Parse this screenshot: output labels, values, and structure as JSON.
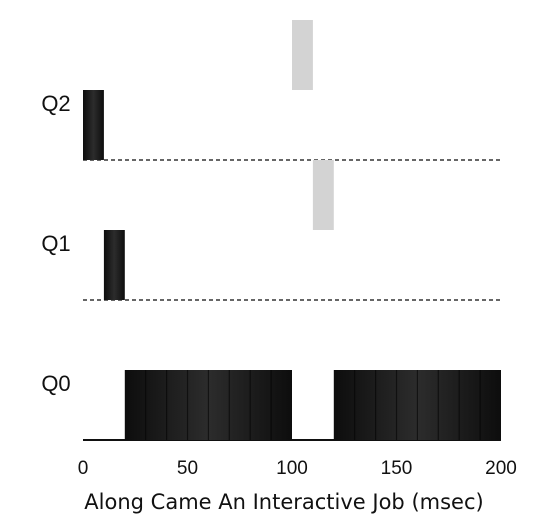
{
  "chart_data": {
    "type": "bar",
    "title": "",
    "xlabel": "Along Came An Interactive Job (msec)",
    "ylabel": "",
    "xlim": [
      0,
      200
    ],
    "x_ticks": [
      0,
      50,
      100,
      150,
      200
    ],
    "queues": [
      "Q2",
      "Q1",
      "Q0"
    ],
    "grid": false,
    "series": [
      {
        "segments": [
          {
            "queue": "Q2",
            "start": 0,
            "end": 10
          },
          {
            "queue": "Q1",
            "start": 10,
            "end": 20
          },
          {
            "queue": "Q0",
            "start": 20,
            "end": 100
          },
          {
            "queue": "Q0",
            "start": 120,
            "end": 200
          }
        ],
        "color": "#111111"
      },
      {
        "segments": [
          {
            "queue": "Q2",
            "start": 100,
            "end": 110
          },
          {
            "queue": "Q1",
            "start": 110,
            "end": 120
          }
        ],
        "color": "#d3d3d3"
      }
    ]
  }
}
